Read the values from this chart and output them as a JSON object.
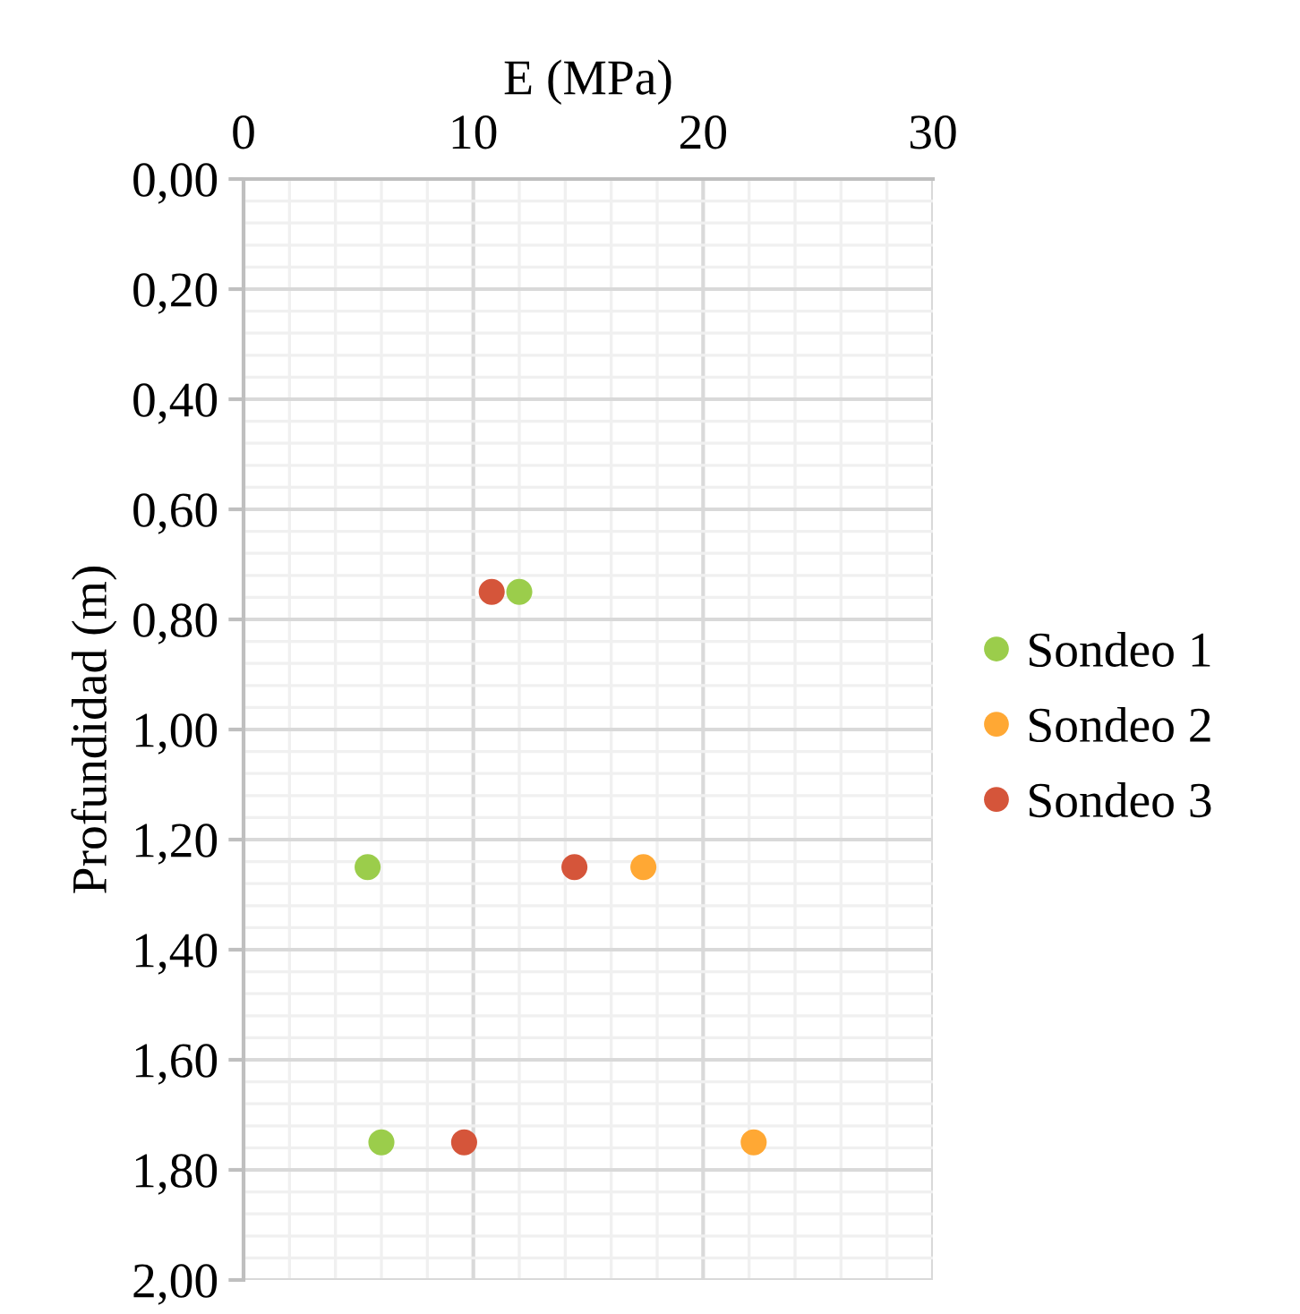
{
  "chart_data": {
    "type": "scatter",
    "xlabel": "E (MPa)",
    "ylabel": "Profundidad (m)",
    "xlim": [
      0,
      30
    ],
    "xticks": [
      0,
      10,
      20,
      30
    ],
    "ylim": [
      2.0,
      0.0
    ],
    "yticks": [
      {
        "value": 0.0,
        "label": "0,00"
      },
      {
        "value": 0.2,
        "label": "0,20"
      },
      {
        "value": 0.4,
        "label": "0,40"
      },
      {
        "value": 0.6,
        "label": "0,60"
      },
      {
        "value": 0.8,
        "label": "0,80"
      },
      {
        "value": 1.0,
        "label": "1,00"
      },
      {
        "value": 1.2,
        "label": "1,20"
      },
      {
        "value": 1.4,
        "label": "1,40"
      },
      {
        "value": 1.6,
        "label": "1,60"
      },
      {
        "value": 1.8,
        "label": "1,80"
      },
      {
        "value": 2.0,
        "label": "2,00"
      }
    ],
    "grid": true,
    "legend": "right",
    "marker": "circle",
    "series": [
      {
        "name": "Sondeo 1",
        "color": "#9bcd4b",
        "x": [
          12.0,
          5.4,
          6.0
        ],
        "values": [
          0.75,
          1.25,
          1.75
        ]
      },
      {
        "name": "Sondeo 2",
        "color": "#ffa834",
        "x": [
          17.4,
          22.2
        ],
        "values": [
          1.25,
          1.75
        ]
      },
      {
        "name": "Sondeo 3",
        "color": "#d5553a",
        "x": [
          10.8,
          14.4,
          9.6
        ],
        "values": [
          0.75,
          1.25,
          1.75
        ]
      }
    ]
  }
}
